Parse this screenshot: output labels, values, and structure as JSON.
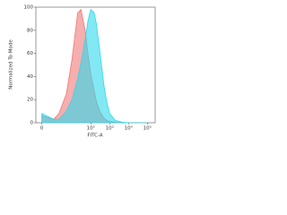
{
  "chart_data": {
    "type": "area",
    "x_label": "FITC-A",
    "y_label": "Normalized To Mode",
    "x": [
      0,
      1,
      2,
      5,
      10,
      20,
      30,
      50,
      70,
      100,
      150,
      200,
      300,
      500,
      700,
      1000,
      2000,
      5000,
      10000,
      100000
    ],
    "series": [
      {
        "color": "#f07878",
        "values": [
          6,
          3,
          8,
          25,
          55,
          95,
          98,
          80,
          60,
          42,
          28,
          18,
          10,
          4,
          2,
          1,
          0.5,
          0,
          0,
          0
        ]
      },
      {
        "color": "#2fd8ec",
        "values": [
          8,
          3,
          3,
          10,
          20,
          38,
          52,
          72,
          88,
          98,
          95,
          85,
          62,
          32,
          18,
          8,
          2,
          0.5,
          0,
          0
        ]
      }
    ],
    "x_scale": "biexponential",
    "xlim": [
      -0.4,
      262144
    ],
    "xticks": [
      0,
      {
        "value": 100,
        "label": "10²"
      },
      {
        "value": 1000,
        "label": "10³"
      },
      {
        "value": 10000,
        "label": "10⁴"
      },
      {
        "value": 100000,
        "label": "10⁵"
      }
    ],
    "ylim": [
      0,
      100
    ],
    "yticks": [
      0,
      20,
      40,
      60,
      80,
      100
    ]
  }
}
